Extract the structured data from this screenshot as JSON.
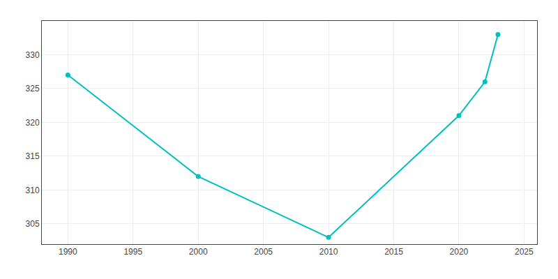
{
  "chart_data": {
    "type": "line",
    "x": [
      1990,
      2000,
      2010,
      2020,
      2022,
      2023
    ],
    "values": [
      327,
      312,
      303,
      321,
      326,
      333
    ],
    "color": "#00BFBF",
    "marker": "circle",
    "xlim": [
      1988,
      2026
    ],
    "ylim": [
      302,
      335
    ],
    "xticks": [
      1990,
      1995,
      2000,
      2005,
      2010,
      2015,
      2020,
      2025
    ],
    "yticks": [
      305,
      310,
      315,
      320,
      325,
      330
    ],
    "grid": true
  }
}
